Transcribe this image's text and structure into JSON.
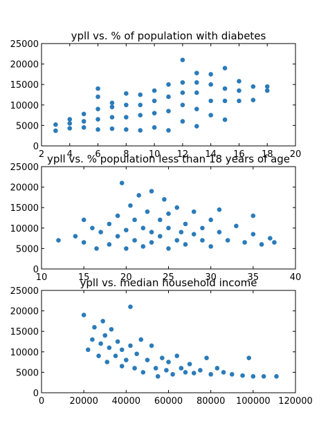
{
  "chart_data": [
    {
      "type": "scatter",
      "title": "ypll vs. % of population with diabetes",
      "color": "#2b7bb9",
      "x": [
        3,
        3,
        4,
        4,
        4,
        5,
        5,
        5,
        6,
        6,
        6,
        6,
        6,
        7,
        7,
        7,
        7,
        8,
        8,
        8,
        8,
        9,
        9,
        9,
        9,
        10,
        10,
        10,
        10,
        11,
        11,
        11,
        11,
        12,
        12,
        12,
        12,
        12,
        13,
        13,
        13,
        13,
        13,
        14,
        14,
        14,
        14,
        15,
        15,
        15,
        15,
        16,
        16,
        16,
        17,
        17,
        18,
        18
      ],
      "y": [
        3700,
        5200,
        4300,
        5500,
        6500,
        4500,
        6000,
        7800,
        4000,
        6500,
        9000,
        12000,
        14000,
        4200,
        7000,
        9500,
        10500,
        4000,
        7000,
        10000,
        12800,
        3800,
        7500,
        10000,
        12500,
        4500,
        8000,
        11000,
        13500,
        3800,
        8500,
        12000,
        15000,
        6000,
        10000,
        13000,
        15500,
        21000,
        4800,
        9000,
        13000,
        15500,
        17800,
        7500,
        11000,
        15000,
        17500,
        6400,
        11000,
        14000,
        19000,
        11000,
        13500,
        15800,
        11200,
        14500,
        13500,
        14500
      ],
      "xlim": [
        2,
        20
      ],
      "xticks": [
        2,
        4,
        6,
        8,
        10,
        12,
        14,
        16,
        18,
        20
      ],
      "ylim": [
        0,
        25000
      ],
      "yticks": [
        0,
        5000,
        10000,
        15000,
        20000,
        25000
      ]
    },
    {
      "type": "scatter",
      "title": "ypll vs. % population less than 18 years of age",
      "color": "#2b7bb9",
      "x": [
        12,
        14,
        15,
        15,
        16,
        16.5,
        17,
        18,
        18,
        19,
        19,
        19.5,
        20,
        20,
        20.5,
        21,
        21,
        21.5,
        22,
        22,
        22.5,
        23,
        23,
        23,
        24,
        24,
        24.5,
        25,
        25,
        25,
        26,
        26,
        26.5,
        27,
        27,
        28,
        28,
        29,
        29,
        30,
        30,
        31,
        31,
        32,
        33,
        34,
        35,
        35,
        36,
        37,
        37.5
      ],
      "y": [
        7000,
        8000,
        12000,
        6500,
        10000,
        5000,
        9000,
        6000,
        11000,
        8000,
        13000,
        21000,
        5000,
        9500,
        15500,
        7000,
        12000,
        18000,
        5500,
        10000,
        14000,
        6500,
        19000,
        9000,
        8000,
        12000,
        17000,
        5000,
        10000,
        13500,
        7000,
        15000,
        9000,
        6000,
        11000,
        8500,
        14000,
        7000,
        10000,
        5500,
        12000,
        9000,
        14500,
        7000,
        10500,
        6500,
        13000,
        8500,
        6000,
        7500,
        6500
      ],
      "xlim": [
        10,
        40
      ],
      "xticks": [
        10,
        15,
        20,
        25,
        30,
        35,
        40
      ],
      "ylim": [
        0,
        25000
      ],
      "yticks": [
        0,
        5000,
        10000,
        15000,
        20000,
        25000
      ]
    },
    {
      "type": "scatter",
      "title": "ypll vs. median household income",
      "color": "#2b7bb9",
      "x": [
        20000,
        22000,
        24000,
        25000,
        27000,
        28000,
        29000,
        30000,
        31000,
        32000,
        33000,
        35000,
        36000,
        38000,
        38000,
        40000,
        42000,
        42000,
        44000,
        45000,
        47000,
        48000,
        50000,
        52000,
        54000,
        55000,
        57000,
        59000,
        60000,
        62000,
        64000,
        66000,
        68000,
        70000,
        72000,
        75000,
        78000,
        80000,
        83000,
        86000,
        90000,
        95000,
        98000,
        100000,
        105000,
        111000
      ],
      "y": [
        19000,
        10500,
        13000,
        16000,
        9000,
        12000,
        17500,
        14000,
        7500,
        11000,
        15500,
        9000,
        12500,
        6500,
        10500,
        8000,
        21000,
        11500,
        6000,
        9500,
        13000,
        5000,
        8000,
        11500,
        6000,
        4000,
        8500,
        5500,
        7500,
        4500,
        9000,
        6000,
        5000,
        7000,
        4800,
        5500,
        8500,
        4500,
        6000,
        5000,
        4500,
        4200,
        8500,
        4000,
        4000,
        4000
      ],
      "xlim": [
        0,
        120000
      ],
      "xticks": [
        0,
        20000,
        40000,
        60000,
        80000,
        100000,
        120000
      ],
      "ylim": [
        0,
        25000
      ],
      "yticks": [
        0,
        5000,
        10000,
        15000,
        20000,
        25000
      ]
    }
  ]
}
